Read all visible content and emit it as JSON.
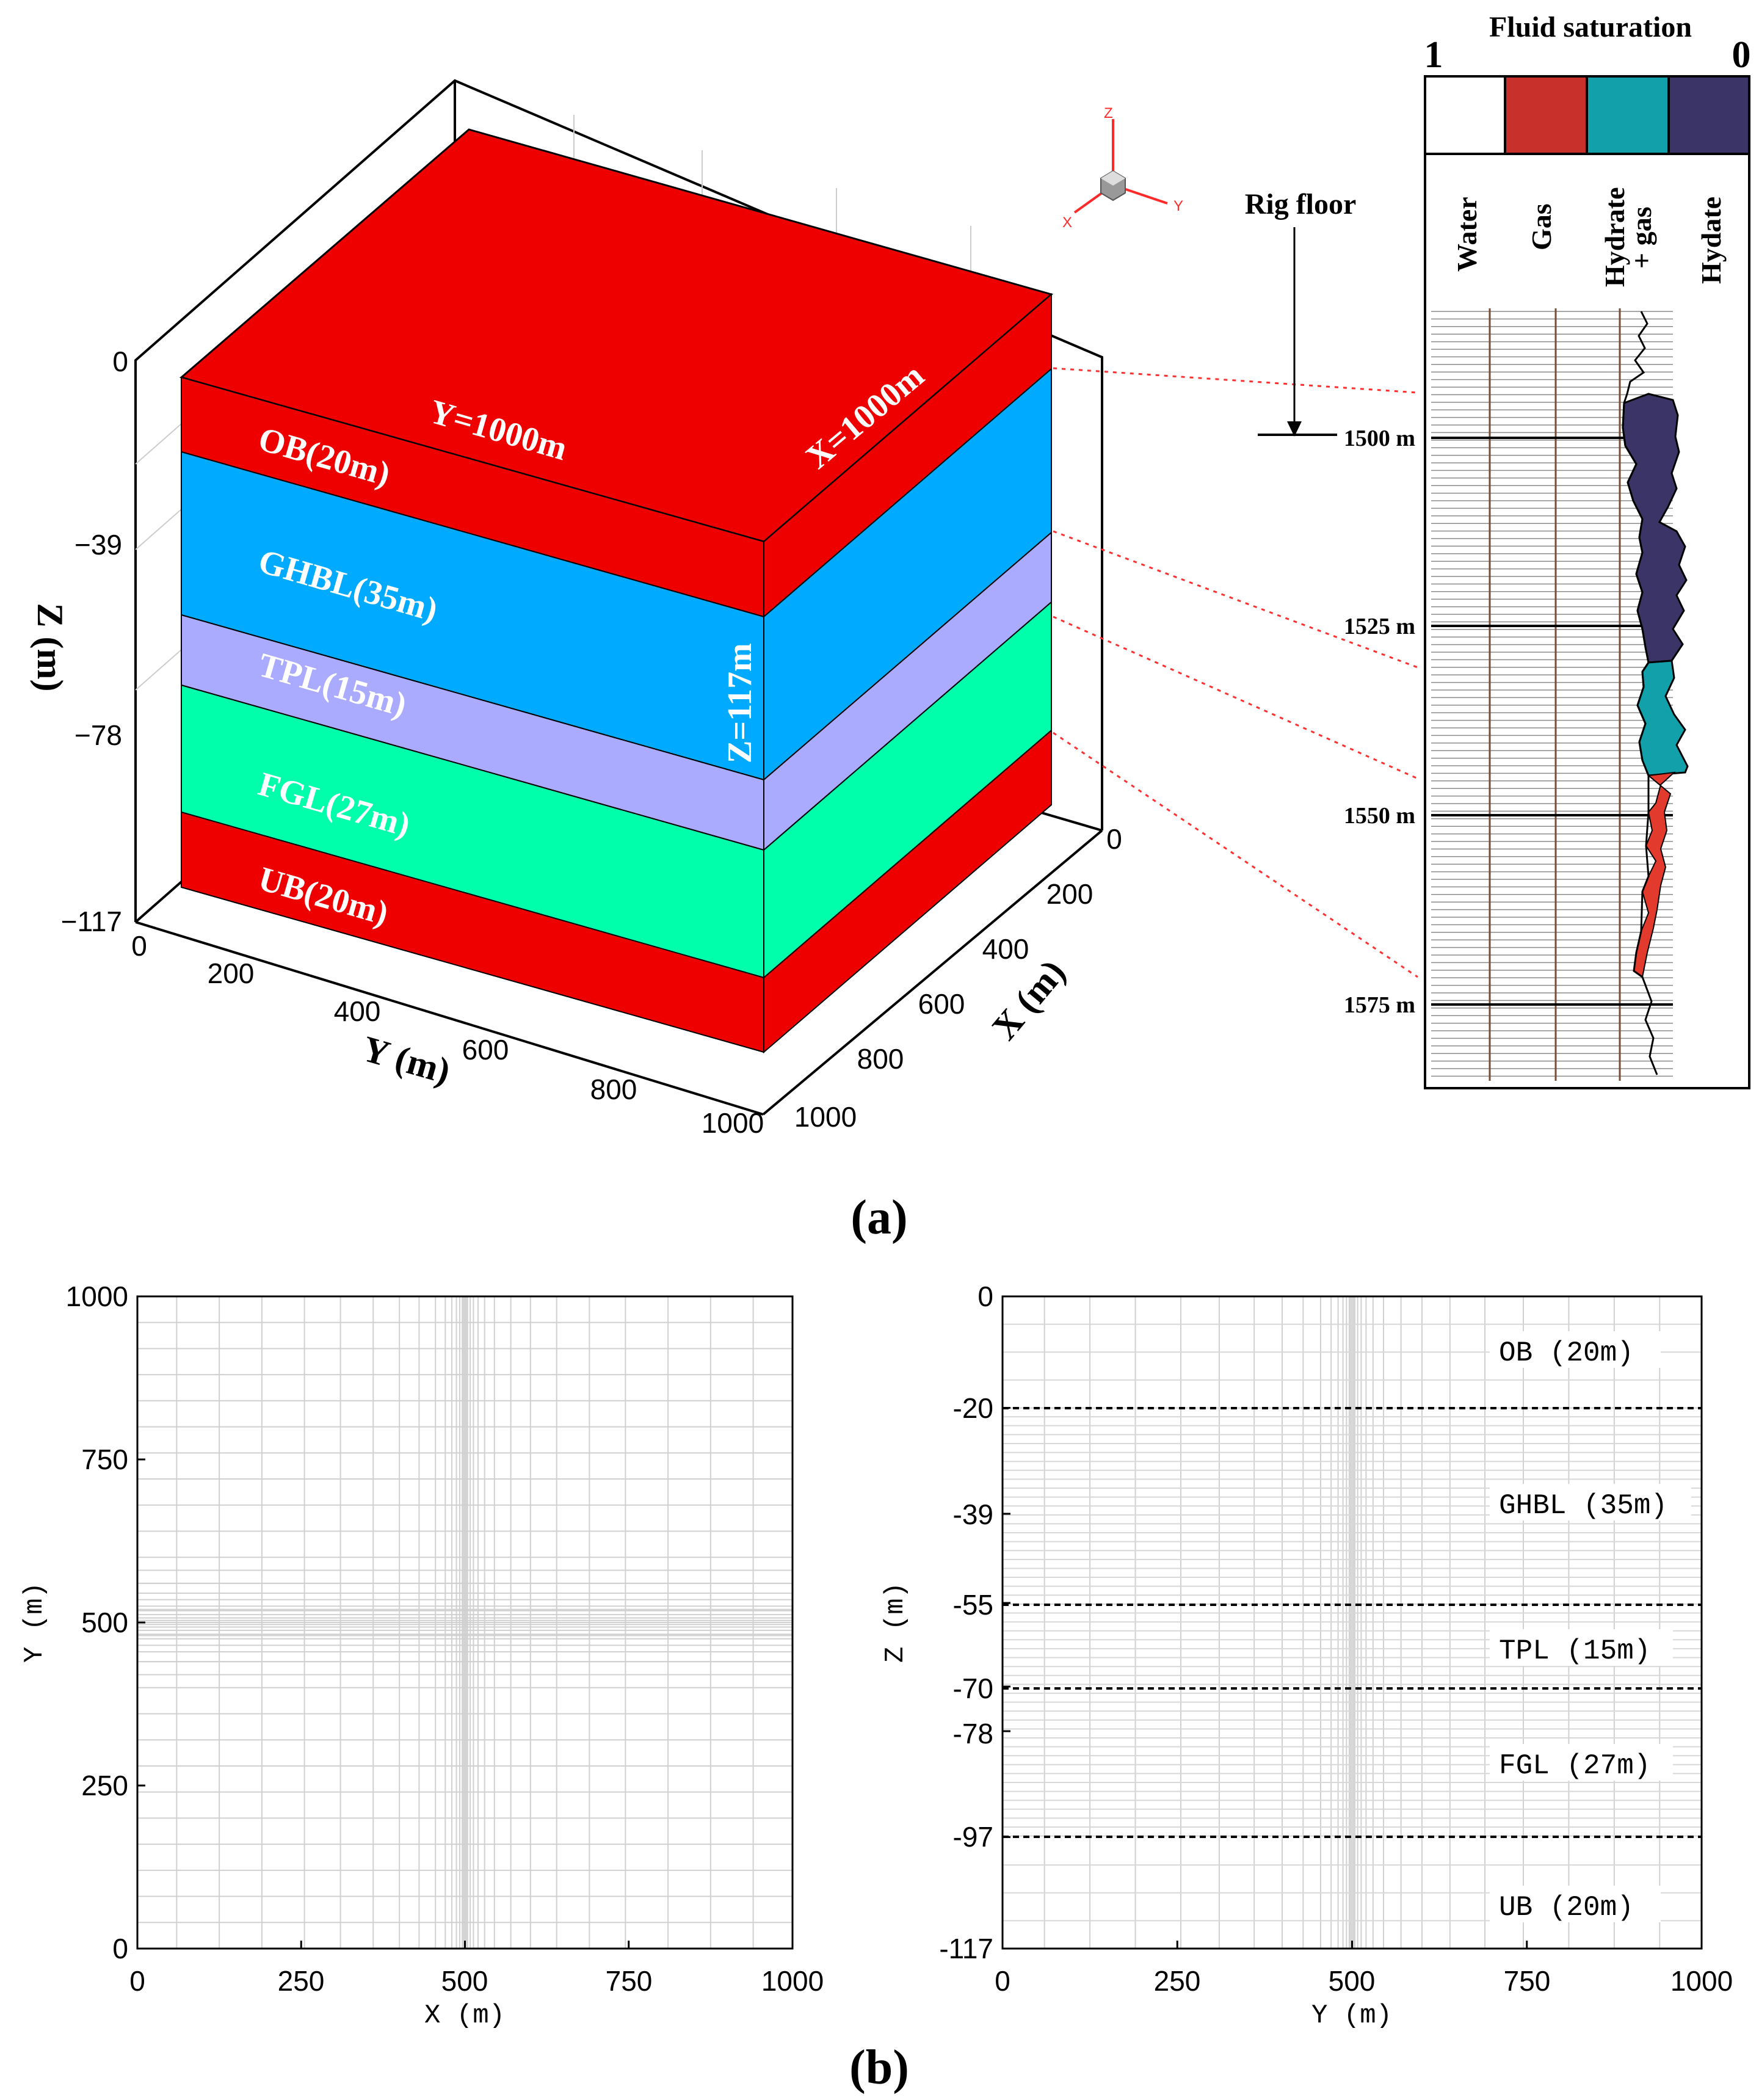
{
  "panel_a": {
    "label": "(a)",
    "model_3d": {
      "z_axis_title": "Z (m)",
      "z_ticks": [
        "0",
        "−39",
        "−78",
        "−117"
      ],
      "y_axis_title": "Y (m)",
      "y_ticks": [
        "0",
        "200",
        "400",
        "600",
        "800",
        "1000"
      ],
      "x_axis_title": "X (m)",
      "x_ticks": [
        "0",
        "200",
        "400",
        "600",
        "800",
        "1000"
      ],
      "dim_y": "Y=1000m",
      "dim_x": "X=1000m",
      "dim_z": "Z=117m",
      "layers": [
        {
          "label": "OB(20m)",
          "thickness_m": 20,
          "color": "#ee0000"
        },
        {
          "label": "GHBL(35m)",
          "thickness_m": 35,
          "color": "#00aaff"
        },
        {
          "label": "TPL(15m)",
          "thickness_m": 15,
          "color": "#aaaaff"
        },
        {
          "label": "FGL(27m)",
          "thickness_m": 27,
          "color": "#00ffaa"
        },
        {
          "label": "UB(20m)",
          "thickness_m": 20,
          "color": "#ee0000"
        }
      ],
      "triad": {
        "z": "Z",
        "x": "X",
        "y": "Y"
      }
    },
    "log": {
      "title": "Fluid saturation",
      "scale_left": "1",
      "scale_right": "0",
      "legend_colors": [
        "#ffffff",
        "#c8302c",
        "#12a0aa",
        "#3a3566"
      ],
      "columns": [
        "Water",
        "Gas",
        "Hydrate\n+ gas",
        "Hydate"
      ],
      "rig_floor": "Rig floor",
      "depths": [
        "1500 m",
        "1525 m",
        "1550 m",
        "1575 m"
      ]
    }
  },
  "panel_b": {
    "label": "(b)",
    "left": {
      "xlabel": "X (m)",
      "ylabel": "Y (m)",
      "x_ticks": [
        "0",
        "250",
        "500",
        "750",
        "1000"
      ],
      "y_ticks": [
        "0",
        "250",
        "500",
        "750",
        "1000"
      ]
    },
    "right": {
      "xlabel": "Y (m)",
      "ylabel": "Z (m)",
      "x_ticks": [
        "0",
        "250",
        "500",
        "750",
        "1000"
      ],
      "y_ticks": [
        "0",
        "-20",
        "-39",
        "-55",
        "-70",
        "-78",
        "-97",
        "-117"
      ],
      "layers": [
        "OB (20m)",
        "GHBL (35m)",
        "TPL (15m)",
        "FGL (27m)",
        "UB (20m)"
      ]
    }
  }
}
